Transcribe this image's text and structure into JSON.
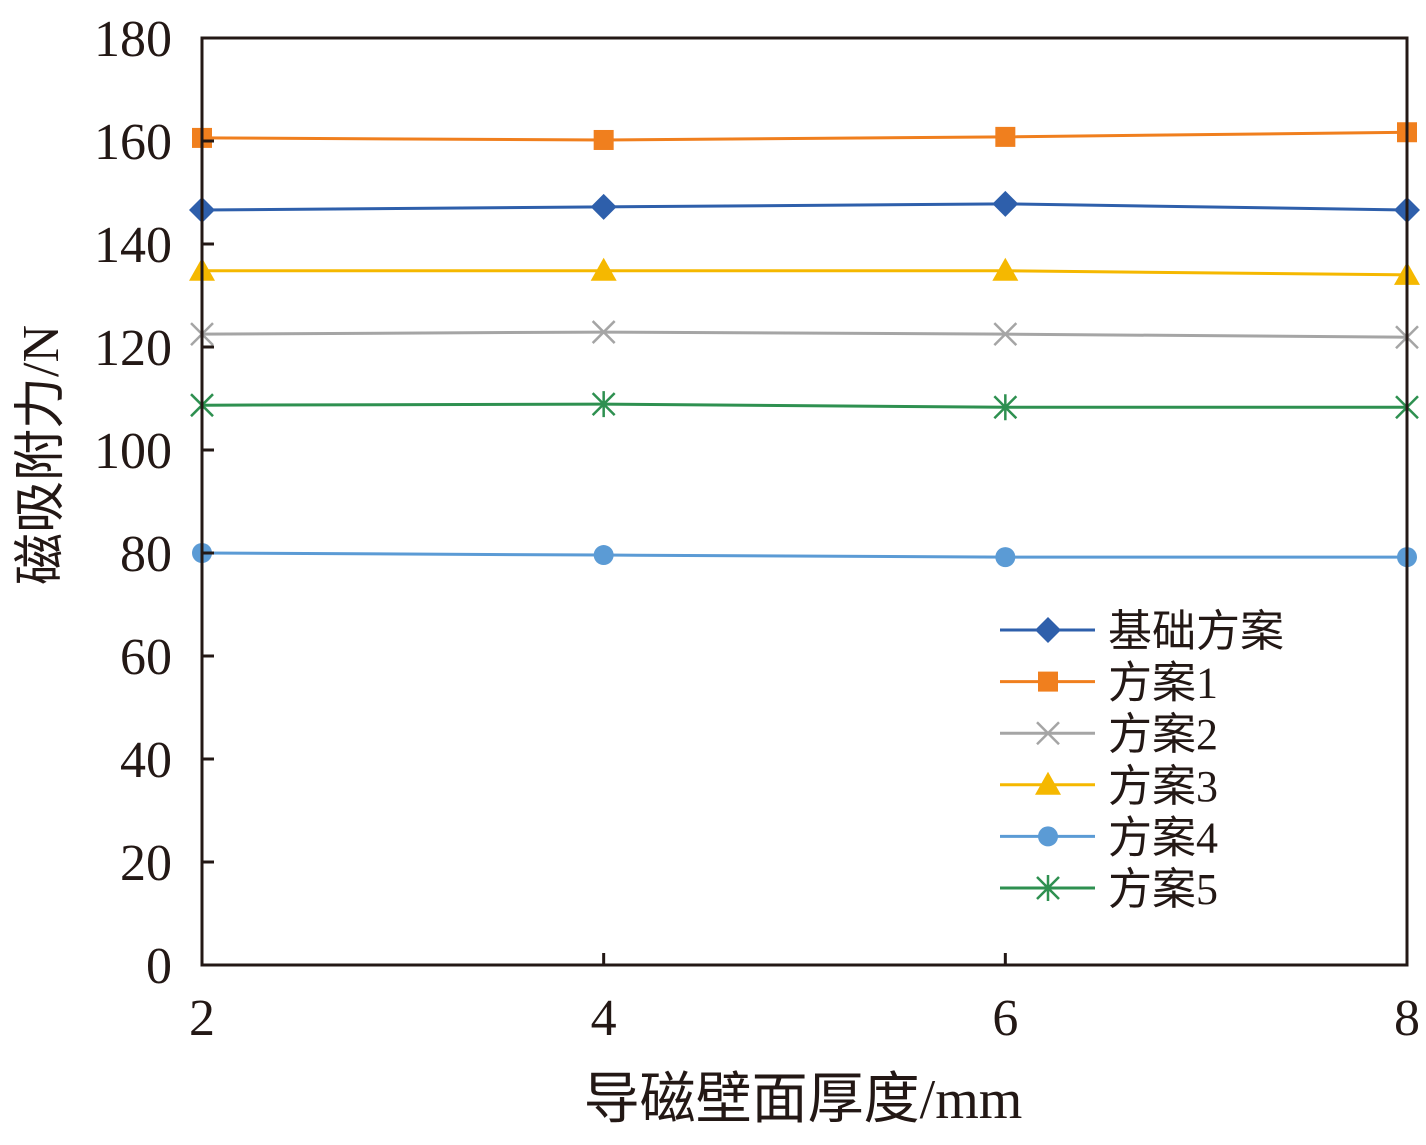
{
  "chart_data": {
    "type": "line",
    "title": "",
    "xlabel": "导磁壁面厚度/mm",
    "ylabel": "磁吸附力/N",
    "x": [
      2,
      4,
      6,
      8
    ],
    "xticks": [
      "2",
      "4",
      "6",
      "8"
    ],
    "yticks": [
      "0",
      "20",
      "40",
      "60",
      "80",
      "100",
      "120",
      "140",
      "160",
      "180"
    ],
    "xlim": [
      2,
      8
    ],
    "ylim": [
      0,
      180
    ],
    "grid": false,
    "legend_position": "lower-right",
    "series": [
      {
        "name": "基础方案",
        "color": "#2e5fab",
        "marker": "diamond",
        "values": [
          146.6,
          147.2,
          147.8,
          146.6
        ]
      },
      {
        "name": "方案1",
        "color": "#f07f1e",
        "marker": "square",
        "values": [
          160.6,
          160.2,
          160.8,
          161.7
        ]
      },
      {
        "name": "方案2",
        "color": "#a5a5a5",
        "marker": "x",
        "values": [
          122.5,
          122.9,
          122.5,
          121.9
        ]
      },
      {
        "name": "方案3",
        "color": "#f5b800",
        "marker": "triangle",
        "values": [
          134.8,
          134.8,
          134.8,
          134.0
        ]
      },
      {
        "name": "方案4",
        "color": "#5b9bd5",
        "marker": "circle",
        "values": [
          80.0,
          79.6,
          79.2,
          79.2
        ]
      },
      {
        "name": "方案5",
        "color": "#2e9050",
        "marker": "star",
        "values": [
          108.7,
          108.9,
          108.3,
          108.3
        ]
      }
    ]
  }
}
